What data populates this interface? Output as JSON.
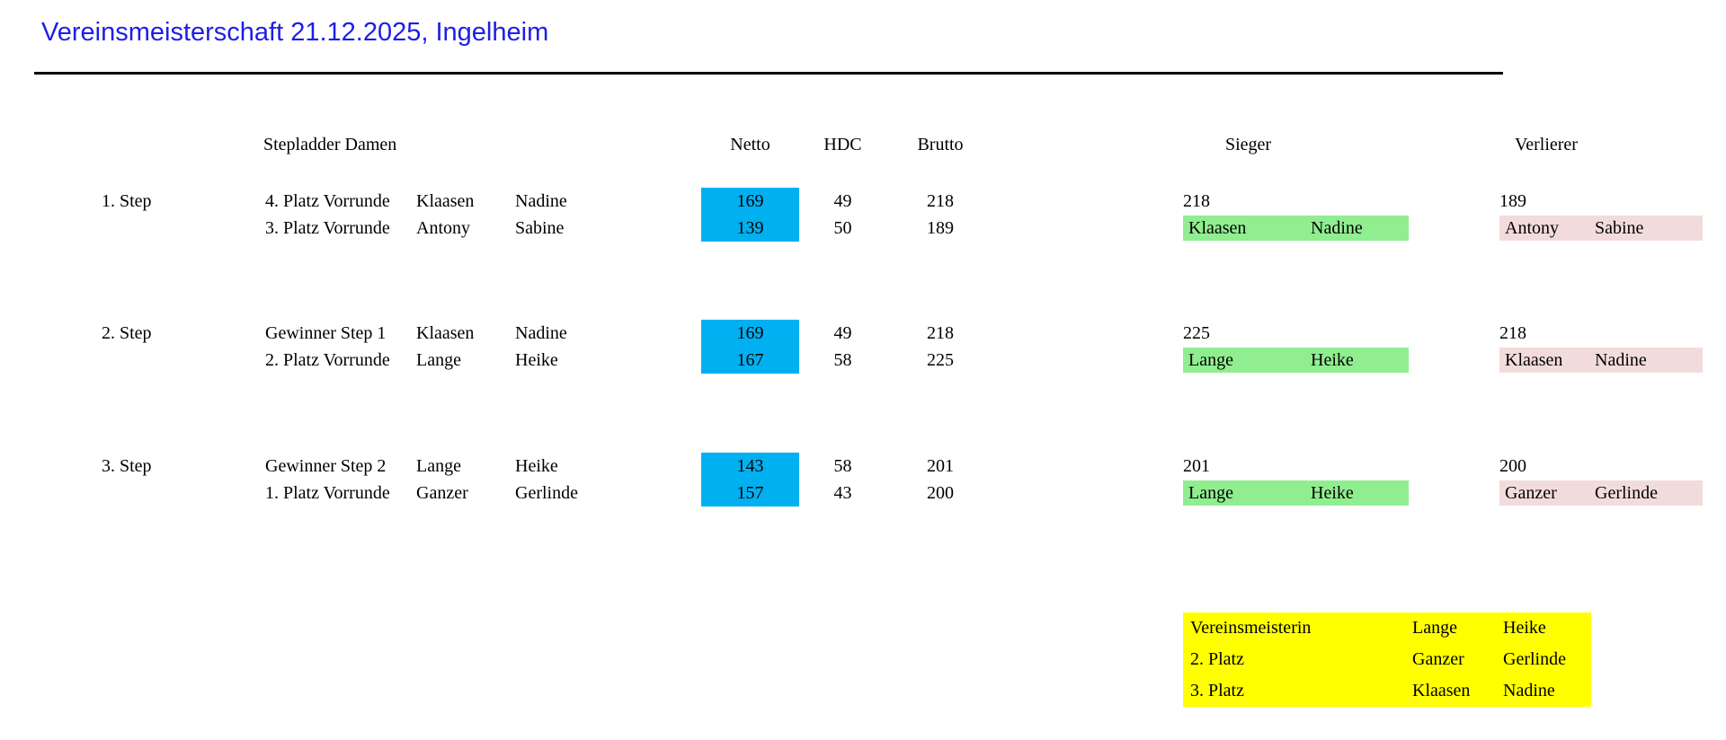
{
  "title": "Vereinsmeisterschaft 21.12.2025, Ingelheim",
  "headers": {
    "group": "Stepladder Damen",
    "netto": "Netto",
    "hdc": "HDC",
    "brutto": "Brutto",
    "sieger": "Sieger",
    "verlierer": "Verlierer"
  },
  "colors": {
    "title_blue": "#1e1ee6",
    "netto_highlight": "#00b0f0",
    "sieger_highlight": "#90ee90",
    "verlierer_highlight": "#f2dcdb",
    "summary_highlight": "#ffff00"
  },
  "steps": [
    {
      "label": "1. Step",
      "rows": [
        {
          "desc": "4. Platz Vorrunde",
          "surname": "Klaasen",
          "firstname": "Nadine",
          "netto": "169",
          "hdc": "49",
          "brutto": "218"
        },
        {
          "desc": "3. Platz Vorrunde",
          "surname": "Antony",
          "firstname": "Sabine",
          "netto": "139",
          "hdc": "50",
          "brutto": "189"
        }
      ],
      "sieger": {
        "score": "218",
        "surname": "Klaasen",
        "firstname": "Nadine"
      },
      "verlierer": {
        "score": "189",
        "surname": "Antony",
        "firstname": "Sabine"
      }
    },
    {
      "label": "2. Step",
      "rows": [
        {
          "desc": "Gewinner Step 1",
          "surname": "Klaasen",
          "firstname": "Nadine",
          "netto": "169",
          "hdc": "49",
          "brutto": "218"
        },
        {
          "desc": "2. Platz Vorrunde",
          "surname": "Lange",
          "firstname": "Heike",
          "netto": "167",
          "hdc": "58",
          "brutto": "225"
        }
      ],
      "sieger": {
        "score": "225",
        "surname": "Lange",
        "firstname": "Heike"
      },
      "verlierer": {
        "score": "218",
        "surname": "Klaasen",
        "firstname": "Nadine"
      }
    },
    {
      "label": "3. Step",
      "rows": [
        {
          "desc": "Gewinner Step 2",
          "surname": "Lange",
          "firstname": "Heike",
          "netto": "143",
          "hdc": "58",
          "brutto": "201"
        },
        {
          "desc": "1. Platz Vorrunde",
          "surname": "Ganzer",
          "firstname": "Gerlinde",
          "netto": "157",
          "hdc": "43",
          "brutto": "200"
        }
      ],
      "sieger": {
        "score": "201",
        "surname": "Lange",
        "firstname": "Heike"
      },
      "verlierer": {
        "score": "200",
        "surname": "Ganzer",
        "firstname": "Gerlinde"
      }
    }
  ],
  "summary": {
    "rows": [
      {
        "label": "Vereinsmeisterin",
        "surname": "Lange",
        "firstname": "Heike"
      },
      {
        "label": "2. Platz",
        "surname": "Ganzer",
        "firstname": "Gerlinde"
      },
      {
        "label": "3. Platz",
        "surname": "Klaasen",
        "firstname": "Nadine"
      }
    ]
  }
}
